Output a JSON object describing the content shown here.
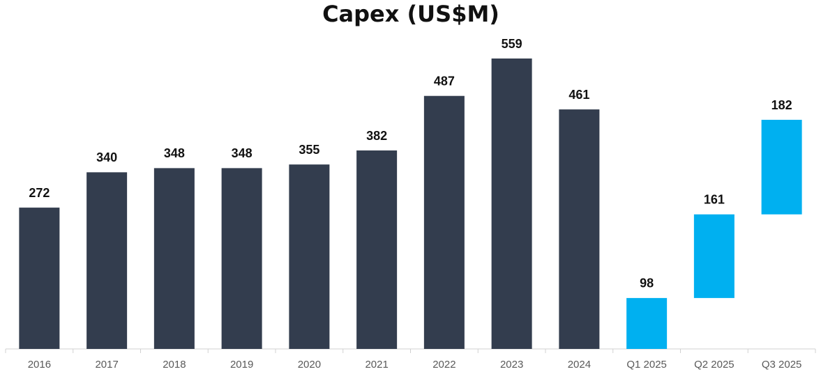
{
  "chart_data": {
    "type": "bar",
    "title": "Capex (US$M)",
    "categories": [
      "2016",
      "2017",
      "2018",
      "2019",
      "2020",
      "2021",
      "2022",
      "2023",
      "2024",
      "Q1 2025",
      "Q2 2025",
      "Q3 2025"
    ],
    "values": [
      272,
      340,
      348,
      348,
      355,
      382,
      487,
      559,
      461,
      98,
      161,
      182
    ],
    "colors": [
      "#333d4e",
      "#333d4e",
      "#333d4e",
      "#333d4e",
      "#333d4e",
      "#333d4e",
      "#333d4e",
      "#333d4e",
      "#333d4e",
      "#00b0f0",
      "#00b0f0",
      "#00b0f0"
    ],
    "stacked_on_previous": [
      false,
      false,
      false,
      false,
      false,
      false,
      false,
      false,
      false,
      false,
      true,
      true
    ]
  }
}
